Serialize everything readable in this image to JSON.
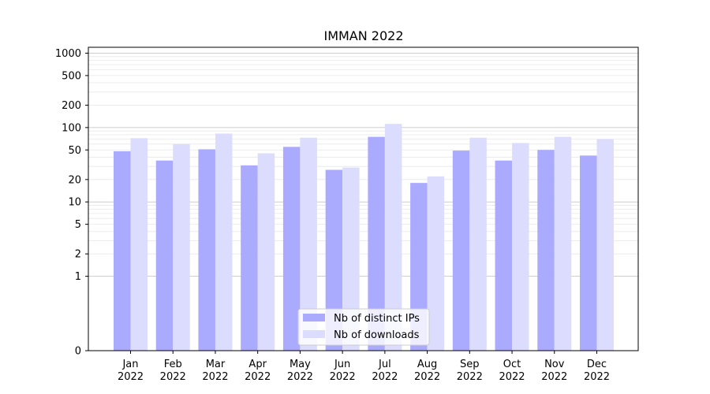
{
  "chart_data": {
    "type": "bar",
    "title": "IMMAN 2022",
    "xlabel": "",
    "ylabel": "",
    "yscale": "symlog",
    "ylim": [
      0,
      1200
    ],
    "grid": true,
    "legend_position": "lower center",
    "yticks": [
      0,
      1,
      2,
      5,
      10,
      20,
      50,
      100,
      200,
      500,
      1000
    ],
    "categories": [
      [
        "Jan",
        "2022"
      ],
      [
        "Feb",
        "2022"
      ],
      [
        "Mar",
        "2022"
      ],
      [
        "Apr",
        "2022"
      ],
      [
        "May",
        "2022"
      ],
      [
        "Jun",
        "2022"
      ],
      [
        "Jul",
        "2022"
      ],
      [
        "Aug",
        "2022"
      ],
      [
        "Sep",
        "2022"
      ],
      [
        "Oct",
        "2022"
      ],
      [
        "Nov",
        "2022"
      ],
      [
        "Dec",
        "2022"
      ]
    ],
    "series": [
      {
        "name": "Nb of distinct IPs",
        "color": "#aaaaff",
        "values": [
          48,
          36,
          51,
          31,
          55,
          27,
          75,
          18,
          49,
          36,
          50,
          42
        ]
      },
      {
        "name": "Nb of downloads",
        "color": "#dcdcff",
        "values": [
          72,
          60,
          83,
          45,
          73,
          29,
          112,
          22,
          73,
          62,
          75,
          70
        ]
      }
    ]
  }
}
